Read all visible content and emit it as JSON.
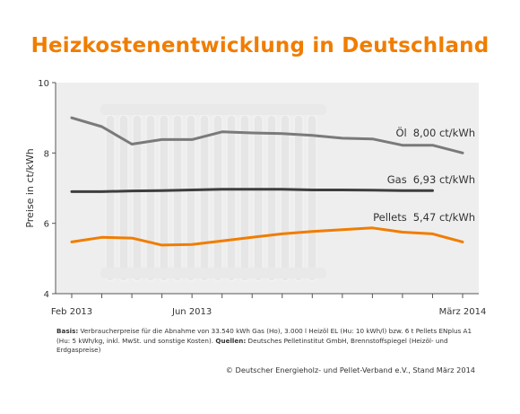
{
  "title": "Heizkostenentwicklung in Deutschland",
  "colors": {
    "title": "#f07d00",
    "plot_bg": "#eeeeee",
    "oel": "#7a7a7a",
    "gas": "#3e3e3e",
    "pellets": "#f07d00",
    "axis": "#555555"
  },
  "notes": {
    "basis_label": "Basis:",
    "basis_text": "Verbraucherpreise für die Abnahme von 33.540 kWh Gas (Ho), 3.000 l Heizöl EL (Hu: 10 kWh/l) bzw. 6 t Pellets ENplus A1 (Hu: 5 kWh/kg, inkl. MwSt. und sonstige Kosten).",
    "quellen_label": "Quellen:",
    "quellen_text": "Deutsches Pelletinstitut GmbH, Brennstoffspiegel (Heizöl- und Erdgaspreise)"
  },
  "copyright": "© Deutscher Energieholz- und Pellet-Verband e.V., Stand März 2014",
  "chart_data": {
    "type": "line",
    "ylabel": "Preise in ct/kWh",
    "ylim": [
      4,
      10
    ],
    "yticks": [
      4,
      6,
      8,
      10
    ],
    "x": [
      "Feb 2013",
      "Mär 2013",
      "Apr 2013",
      "Mai 2013",
      "Jun 2013",
      "Jul 2013",
      "Aug 2013",
      "Sep 2013",
      "Okt 2013",
      "Nov 2013",
      "Dez 2013",
      "Jan 2014",
      "Feb 2014",
      "Mär 2014"
    ],
    "xtick_labels": [
      {
        "index": 0,
        "label": "Feb 2013"
      },
      {
        "index": 4,
        "label": "Jun 2013"
      },
      {
        "index": 13,
        "label": "März 2014"
      }
    ],
    "series": [
      {
        "name": "Öl",
        "label": "8,00 ct/kWh",
        "color": "#7a7a7a",
        "values": [
          9.0,
          8.75,
          8.25,
          8.38,
          8.38,
          8.6,
          8.57,
          8.55,
          8.5,
          8.42,
          8.4,
          8.22,
          8.22,
          8.0
        ]
      },
      {
        "name": "Gas",
        "label": "6,93 ct/kWh",
        "color": "#3e3e3e",
        "values": [
          6.9,
          6.9,
          6.92,
          6.93,
          6.95,
          6.97,
          6.97,
          6.97,
          6.95,
          6.95,
          6.94,
          6.93,
          6.93,
          null
        ]
      },
      {
        "name": "Pellets",
        "label": "5,47 ct/kWh",
        "color": "#f07d00",
        "values": [
          5.47,
          5.6,
          5.58,
          5.38,
          5.4,
          5.5,
          5.6,
          5.7,
          5.77,
          5.82,
          5.87,
          5.75,
          5.7,
          5.47
        ]
      }
    ]
  }
}
